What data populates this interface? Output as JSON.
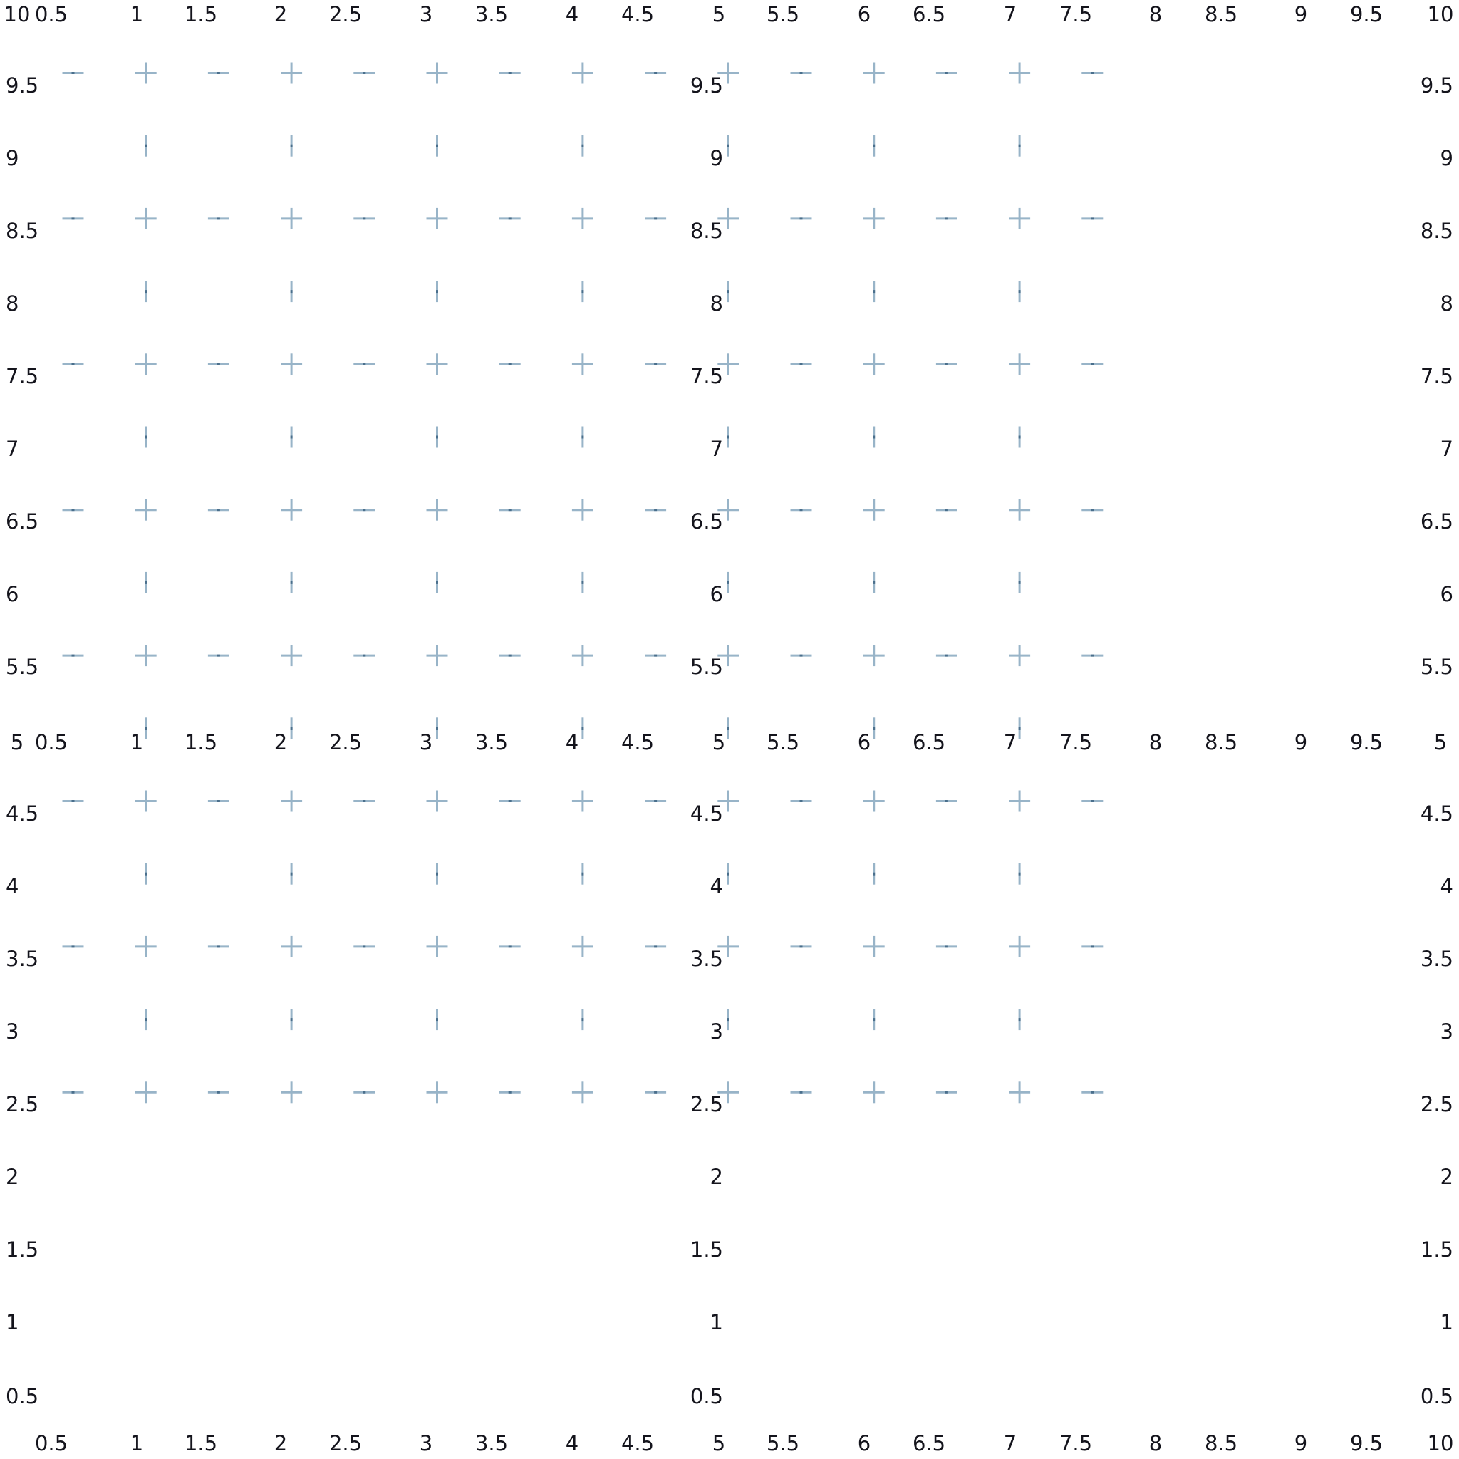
{
  "marks": {
    "color": "#98b4c8",
    "center_color": "#4a6f8c",
    "kinds": [
      "plus",
      "horizontal-dash",
      "vertical-dash"
    ]
  },
  "top_x_labels": [
    "10",
    "0.5",
    "1",
    "1.5",
    "2",
    "2.5",
    "3",
    "3.5",
    "4",
    "4.5",
    "5",
    "5.5",
    "6",
    "6.5",
    "7",
    "7.5",
    "8",
    "8.5",
    "9",
    "9.5",
    "10"
  ],
  "middle_x_labels": [
    "5",
    "0.5",
    "1",
    "1.5",
    "2",
    "2.5",
    "3",
    "3.5",
    "4",
    "4.5",
    "5",
    "5.5",
    "6",
    "6.5",
    "7",
    "7.5",
    "8",
    "8.5",
    "9",
    "9.5",
    "5"
  ],
  "bottom_x_labels": [
    "0.5",
    "1",
    "1.5",
    "2",
    "2.5",
    "3",
    "3.5",
    "4",
    "4.5",
    "5",
    "5.5",
    "6",
    "6.5",
    "7",
    "7.5",
    "8",
    "8.5",
    "9",
    "9.5",
    "10"
  ],
  "left_y_labels": [
    "9.5",
    "9",
    "8.5",
    "8",
    "7.5",
    "7",
    "6.5",
    "6",
    "5.5",
    "4.5",
    "4",
    "3.5",
    "3",
    "2.5",
    "2",
    "1.5",
    "1",
    "0.5"
  ],
  "center_y_labels": [
    "9.5",
    "9",
    "8.5",
    "8",
    "7.5",
    "7",
    "6.5",
    "6",
    "5.5",
    "4.5",
    "4",
    "3.5",
    "3",
    "2.5",
    "2",
    "1.5",
    "1",
    "0.5"
  ],
  "right_y_labels": [
    "9.5",
    "9",
    "8.5",
    "8",
    "7.5",
    "7",
    "6.5",
    "6",
    "5.5",
    "4.5",
    "4",
    "3.5",
    "3",
    "2.5",
    "2",
    "1.5",
    "1",
    "0.5"
  ]
}
